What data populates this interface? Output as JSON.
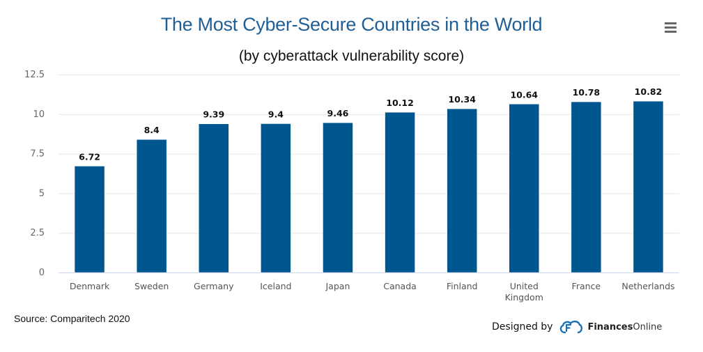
{
  "header": {
    "title": "The Most Cyber-Secure Countries in the World",
    "subtitle": "(by cyberattack vulnerability score)",
    "menu_icon": "hamburger-menu-icon"
  },
  "footer": {
    "source": "Source: Comparitech 2020",
    "designed_by": "Designed by",
    "brand_bold": "Finances",
    "brand_light": "Online",
    "logo_icon": "financesonline-cloud-logo-icon"
  },
  "colors": {
    "bar": "#00568f",
    "title": "#1f5f95",
    "grid": "#e6e6e6",
    "axis": "#ccd6eb"
  },
  "chart_data": {
    "type": "bar",
    "title": "The Most Cyber-Secure Countries in the World",
    "subtitle": "(by cyberattack vulnerability score)",
    "xlabel": "",
    "ylabel": "",
    "categories": [
      "Denmark",
      "Sweden",
      "Germany",
      "Iceland",
      "Japan",
      "Canada",
      "Finland",
      "United Kingdom",
      "France",
      "Netherlands"
    ],
    "category_lines": [
      [
        "Denmark"
      ],
      [
        "Sweden"
      ],
      [
        "Germany"
      ],
      [
        "Iceland"
      ],
      [
        "Japan"
      ],
      [
        "Canada"
      ],
      [
        "Finland"
      ],
      [
        "United",
        "Kingdom"
      ],
      [
        "France"
      ],
      [
        "Netherlands"
      ]
    ],
    "values": [
      6.72,
      8.4,
      9.39,
      9.4,
      9.46,
      10.12,
      10.34,
      10.64,
      10.78,
      10.82
    ],
    "data_labels": [
      "6.72",
      "8.4",
      "9.39",
      "9.4",
      "9.46",
      "10.12",
      "10.34",
      "10.64",
      "10.78",
      "10.82"
    ],
    "ylim": [
      0,
      12.5
    ],
    "yticks": [
      0,
      2.5,
      5,
      7.5,
      10,
      12.5
    ],
    "ytick_labels": [
      "0",
      "2.5",
      "5",
      "7.5",
      "10",
      "12.5"
    ],
    "grid": true,
    "legend": "none",
    "source": "Comparitech 2020"
  }
}
